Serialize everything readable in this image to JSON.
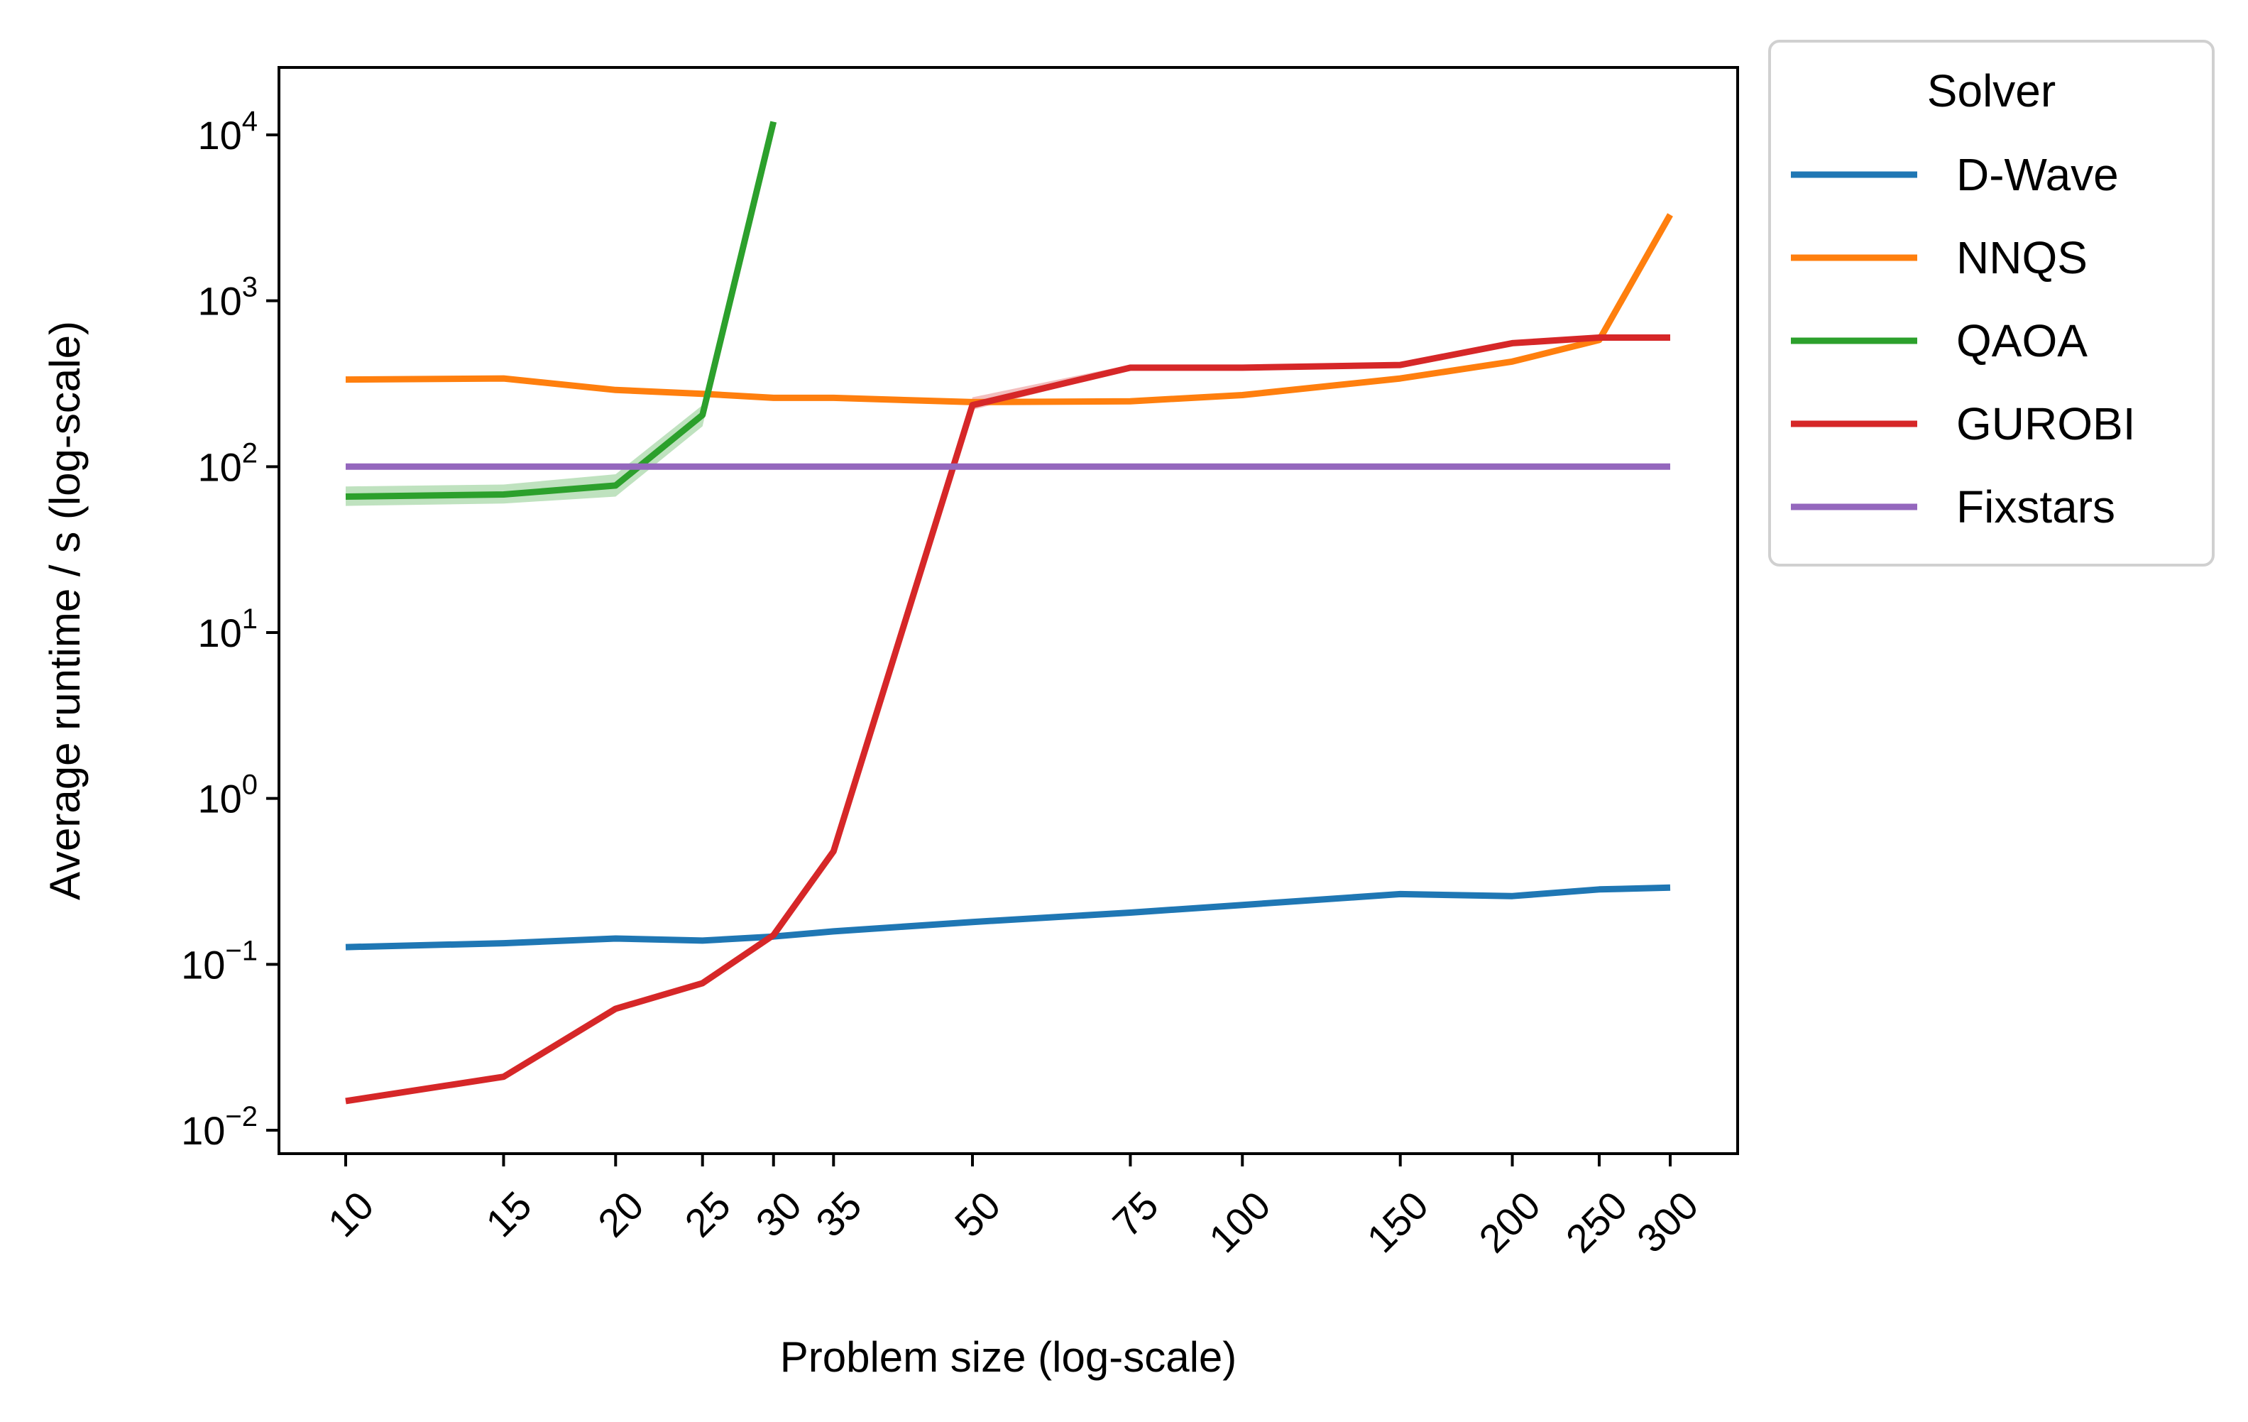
{
  "chart_data": {
    "type": "line",
    "xlabel": "Problem size (log-scale)",
    "ylabel": "Average runtime / s (log-scale)",
    "xscale": "log",
    "yscale": "log",
    "xlim": [
      9.0,
      320
    ],
    "ylim": [
      0.0066,
      25000
    ],
    "x_ticks": [
      10,
      15,
      20,
      25,
      30,
      35,
      50,
      75,
      100,
      150,
      200,
      250,
      300
    ],
    "x_tick_labels": [
      "10",
      "15",
      "20",
      "25",
      "30",
      "35",
      "50",
      "75",
      "100",
      "150",
      "200",
      "250",
      "300"
    ],
    "y_ticks": [
      {
        "value": 0.01,
        "base": "10",
        "exp": "−2"
      },
      {
        "value": 0.1,
        "base": "10",
        "exp": "−1"
      },
      {
        "value": 1,
        "base": "10",
        "exp": "0"
      },
      {
        "value": 10,
        "base": "10",
        "exp": "1"
      },
      {
        "value": 100,
        "base": "10",
        "exp": "2"
      },
      {
        "value": 1000,
        "base": "10",
        "exp": "3"
      },
      {
        "value": 10000,
        "base": "10",
        "exp": "4"
      }
    ],
    "grid": false,
    "legend": {
      "title": "Solver",
      "placement": "outside right, top"
    },
    "series": [
      {
        "name": "D-Wave",
        "color": "#1f77b4",
        "x": [
          10,
          15,
          20,
          25,
          30,
          35,
          50,
          75,
          100,
          150,
          200,
          250,
          300
        ],
        "y": [
          0.127,
          0.134,
          0.143,
          0.139,
          0.147,
          0.158,
          0.18,
          0.205,
          0.228,
          0.265,
          0.258,
          0.283,
          0.29
        ]
      },
      {
        "name": "NNQS",
        "color": "#ff7f0e",
        "x": [
          10,
          15,
          20,
          25,
          30,
          35,
          50,
          75,
          100,
          150,
          200,
          250,
          300
        ],
        "y": [
          335,
          340,
          290,
          275,
          260,
          260,
          245,
          248,
          270,
          340,
          430,
          580,
          3300
        ]
      },
      {
        "name": "QAOA",
        "color": "#2ca02c",
        "x": [
          10,
          15,
          20,
          25,
          30
        ],
        "y": [
          66,
          68,
          77,
          205,
          12000
        ],
        "band_low": [
          58,
          60,
          66,
          175,
          12000
        ],
        "band_high": [
          76,
          78,
          90,
          235,
          12000
        ]
      },
      {
        "name": "GUROBI",
        "color": "#d62728",
        "x": [
          10,
          15,
          20,
          25,
          30,
          35,
          50,
          75,
          100,
          150,
          200,
          250,
          300
        ],
        "y": [
          0.015,
          0.021,
          0.054,
          0.077,
          0.15,
          0.48,
          235,
          395,
          395,
          410,
          555,
          600,
          600
        ],
        "band_low": [
          0.0147,
          0.0206,
          0.053,
          0.075,
          0.146,
          0.47,
          220,
          385,
          390,
          405,
          548,
          595,
          596
        ],
        "band_high": [
          0.0153,
          0.0214,
          0.055,
          0.079,
          0.154,
          0.49,
          262,
          412,
          405,
          420,
          562,
          606,
          605
        ]
      },
      {
        "name": "Fixstars",
        "color": "#9467bd",
        "x": [
          10,
          15,
          20,
          25,
          30,
          35,
          50,
          75,
          100,
          150,
          200,
          250,
          300
        ],
        "y": [
          100,
          100,
          100,
          100,
          100,
          100,
          100,
          100,
          100,
          100,
          100,
          100,
          100
        ]
      }
    ]
  }
}
